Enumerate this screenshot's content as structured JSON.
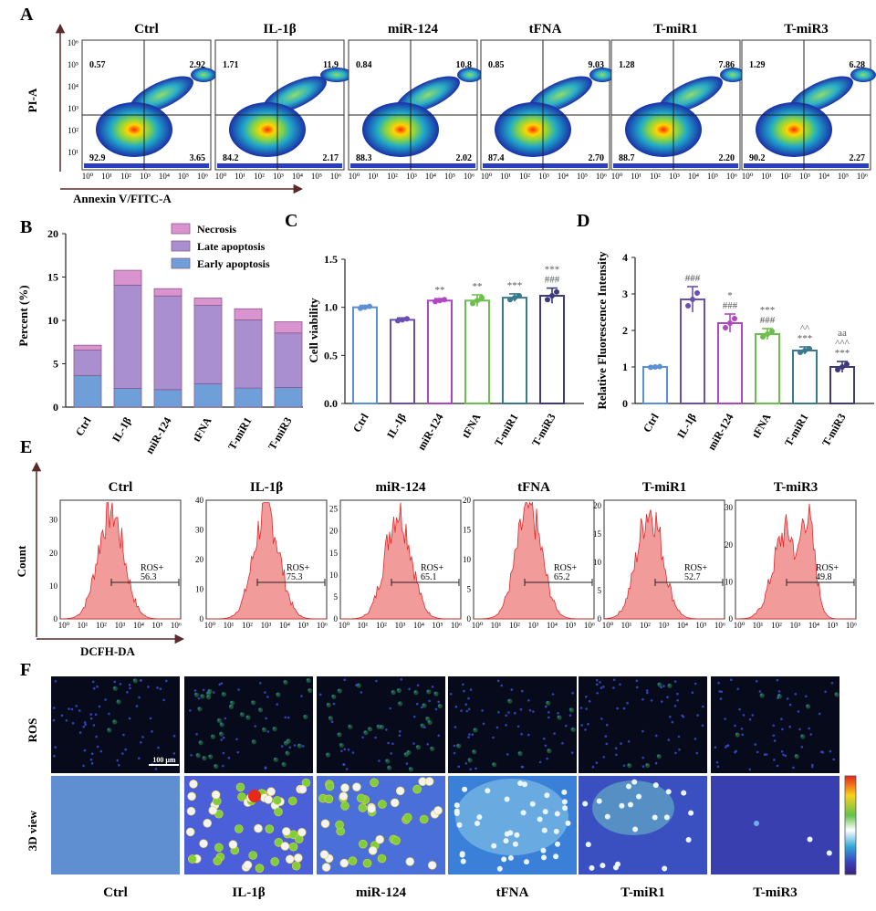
{
  "colors": {
    "early": "#6f9fd8",
    "late": "#a98fcf",
    "necrosis": "#d993cf",
    "ctrl": "#5b8fd6",
    "il1b": "#6a4fb3",
    "mir124": "#b146c2",
    "tfna": "#6cbf4a",
    "tmir1": "#3a7a8c",
    "tmir3": "#3d3a7a",
    "hist": "#f08a8a"
  },
  "panel_a": {
    "label": "A",
    "ylabel": "PI-A",
    "xlabel": "Annexin V/FITC-A",
    "groups": [
      {
        "name": "Ctrl",
        "q": [
          "0.57",
          "2.92",
          "92.9",
          "3.65"
        ]
      },
      {
        "name": "IL-1β",
        "q": [
          "1.71",
          "11.9",
          "84.2",
          "2.17"
        ]
      },
      {
        "name": "miR-124",
        "q": [
          "0.84",
          "10.8",
          "88.3",
          "2.02"
        ]
      },
      {
        "name": "tFNA",
        "q": [
          "0.85",
          "9.03",
          "87.4",
          "2.70"
        ]
      },
      {
        "name": "T-miR1",
        "q": [
          "1.28",
          "7.86",
          "88.7",
          "2.20"
        ]
      },
      {
        "name": "T-miR3",
        "q": [
          "1.29",
          "6.28",
          "90.2",
          "2.27"
        ]
      }
    ],
    "yticks": [
      "10⁶",
      "10⁵",
      "10⁴",
      "10³",
      "10²",
      "10¹"
    ],
    "xticks": [
      "10⁰",
      "10¹",
      "10²",
      "10³",
      "10⁴",
      "10⁵",
      "10⁶"
    ]
  },
  "chart_data": [
    {
      "panel": "B",
      "type": "bar",
      "stacked": true,
      "ylabel": "Percent (%)",
      "ylim": [
        0,
        20
      ],
      "yticks": [
        "0",
        "5",
        "10",
        "15",
        "20"
      ],
      "categories": [
        "Ctrl",
        "IL-1β",
        "miR-124",
        "tFNA",
        "T-miR1",
        "T-miR3"
      ],
      "series": [
        {
          "name": "Early apoptosis",
          "values": [
            3.65,
            2.17,
            2.02,
            2.7,
            2.2,
            2.27
          ]
        },
        {
          "name": "Late apoptosis",
          "values": [
            2.92,
            11.9,
            10.8,
            9.03,
            7.86,
            6.28
          ]
        },
        {
          "name": "Necrosis",
          "values": [
            0.57,
            1.71,
            0.84,
            0.85,
            1.28,
            1.29
          ]
        }
      ]
    },
    {
      "panel": "C",
      "type": "bar",
      "ylabel": "Cell viability",
      "ylim": [
        0,
        1.5
      ],
      "yticks": [
        "0.0",
        "0.5",
        "1.0",
        "1.5"
      ],
      "categories": [
        "Ctrl",
        "IL-1β",
        "miR-124",
        "tFNA",
        "T-miR1",
        "T-miR3"
      ],
      "values": [
        1.0,
        0.87,
        1.07,
        1.07,
        1.1,
        1.12
      ],
      "errors": [
        0.02,
        0.02,
        0.02,
        0.06,
        0.04,
        0.08
      ],
      "annotations": [
        [],
        [],
        [
          "**"
        ],
        [
          "**"
        ],
        [
          "***"
        ],
        [
          "***",
          "###"
        ]
      ]
    },
    {
      "panel": "D",
      "type": "bar",
      "ylabel": "Relative Fluorescence Intensity",
      "ylim": [
        0,
        4
      ],
      "yticks": [
        "0",
        "1",
        "2",
        "3",
        "4"
      ],
      "categories": [
        "Ctrl",
        "IL-1β",
        "miR-124",
        "tFNA",
        "T-miR1",
        "T-miR3"
      ],
      "values": [
        1.0,
        2.85,
        2.2,
        1.9,
        1.45,
        1.0
      ],
      "errors": [
        0.02,
        0.35,
        0.25,
        0.15,
        0.1,
        0.15
      ],
      "annotations": [
        [],
        [
          "###"
        ],
        [
          "*",
          "###"
        ],
        [
          "***",
          "###"
        ],
        [
          "^^",
          "***"
        ],
        [
          "aa",
          "^^^",
          "***"
        ]
      ]
    },
    {
      "panel": "E",
      "type": "histogram",
      "ylabel": "Count",
      "xlabel": "DCFH-DA",
      "gate": "ROS+",
      "groups": [
        {
          "name": "Ctrl",
          "value": "56.3",
          "yticks": [
            "0",
            "10",
            "20",
            "30"
          ],
          "ymax": 36
        },
        {
          "name": "IL-1β",
          "value": "75.3",
          "yticks": [
            "0",
            "10",
            "20",
            "30",
            "40"
          ],
          "ymax": 40
        },
        {
          "name": "miR-124",
          "value": "65.1",
          "yticks": [
            "0",
            "5",
            "10",
            "15",
            "20",
            "25"
          ],
          "ymax": 27
        },
        {
          "name": "tFNA",
          "value": "65.2",
          "yticks": [
            "0",
            "5",
            "10",
            "15",
            "20"
          ],
          "ymax": 20
        },
        {
          "name": "T-miR1",
          "value": "52.7",
          "yticks": [
            "0",
            "5",
            "10",
            "15",
            "20"
          ],
          "ymax": 21
        },
        {
          "name": "T-miR3",
          "value": "49.8",
          "yticks": [
            "0",
            "10",
            "20",
            "30"
          ],
          "ymax": 32
        }
      ],
      "xticks": [
        "10⁰",
        "10¹",
        "10²",
        "10³",
        "10⁴",
        "10⁵",
        "10⁶"
      ]
    }
  ],
  "panel_b": {
    "label": "B"
  },
  "panel_c": {
    "label": "C"
  },
  "panel_d": {
    "label": "D"
  },
  "panel_e": {
    "label": "E"
  },
  "panel_f": {
    "label": "F",
    "row1": "ROS",
    "row2": "3D view",
    "scalebar": "100 μm",
    "groups": [
      "Ctrl",
      "IL-1β",
      "miR-124",
      "tFNA",
      "T-miR1",
      "T-miR3"
    ]
  }
}
